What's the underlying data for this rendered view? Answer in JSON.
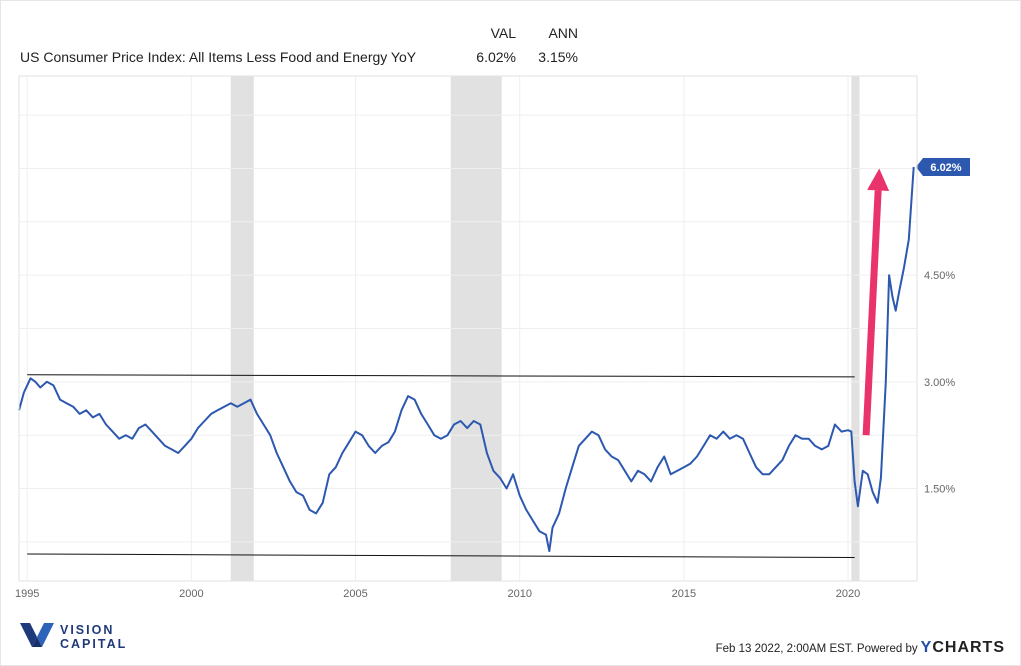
{
  "header": {
    "col_val": "VAL",
    "col_ann": "ANN",
    "series_label": "US Consumer Price Index: All Items Less Food and Energy YoY",
    "val": "6.02%",
    "ann": "3.15%"
  },
  "chart_data": {
    "type": "line",
    "title": "",
    "xlabel": "",
    "ylabel": "",
    "xlim": [
      1994.75,
      2022.1
    ],
    "ylim": [
      0.2,
      7.3
    ],
    "x_ticks": [
      "1995",
      "2000",
      "2005",
      "2010",
      "2015",
      "2020"
    ],
    "y_ticks": [
      "1.50%",
      "3.00%",
      "4.50%"
    ],
    "grid": true,
    "last_value_label": "6.02%",
    "recessions": [
      [
        2001.2,
        2001.9
      ],
      [
        2007.9,
        2009.45
      ],
      [
        2020.1,
        2020.35
      ]
    ],
    "annotations": {
      "upper_line": {
        "start": [
          1995.0,
          3.1
        ],
        "end": [
          2020.2,
          3.07
        ]
      },
      "lower_line": {
        "start": [
          1995.0,
          0.58
        ],
        "end": [
          2020.2,
          0.53
        ]
      },
      "arrow": {
        "start": [
          2020.55,
          2.25
        ],
        "end": [
          2020.95,
          6.0
        ],
        "color": "#e8336b"
      }
    },
    "series": [
      {
        "name": "US Consumer Price Index: All Items Less Food and Energy YoY",
        "color": "#2d58b0",
        "x": [
          1994.75,
          1994.9,
          1995.0,
          1995.1,
          1995.25,
          1995.4,
          1995.6,
          1995.8,
          1996.0,
          1996.2,
          1996.4,
          1996.6,
          1996.8,
          1997.0,
          1997.2,
          1997.4,
          1997.6,
          1997.8,
          1998.0,
          1998.2,
          1998.4,
          1998.6,
          1998.8,
          1999.0,
          1999.2,
          1999.4,
          1999.6,
          1999.8,
          2000.0,
          2000.2,
          2000.4,
          2000.6,
          2000.8,
          2001.0,
          2001.2,
          2001.4,
          2001.6,
          2001.8,
          2002.0,
          2002.2,
          2002.4,
          2002.6,
          2002.8,
          2003.0,
          2003.2,
          2003.4,
          2003.6,
          2003.8,
          2004.0,
          2004.2,
          2004.4,
          2004.6,
          2004.8,
          2005.0,
          2005.2,
          2005.4,
          2005.6,
          2005.8,
          2006.0,
          2006.2,
          2006.4,
          2006.6,
          2006.8,
          2007.0,
          2007.2,
          2007.4,
          2007.6,
          2007.8,
          2008.0,
          2008.2,
          2008.4,
          2008.6,
          2008.8,
          2009.0,
          2009.2,
          2009.4,
          2009.6,
          2009.8,
          2010.0,
          2010.2,
          2010.4,
          2010.6,
          2010.8,
          2010.9,
          2011.0,
          2011.2,
          2011.4,
          2011.6,
          2011.8,
          2012.0,
          2012.2,
          2012.4,
          2012.6,
          2012.8,
          2013.0,
          2013.2,
          2013.4,
          2013.6,
          2013.8,
          2014.0,
          2014.2,
          2014.4,
          2014.6,
          2014.8,
          2015.0,
          2015.2,
          2015.4,
          2015.6,
          2015.8,
          2016.0,
          2016.2,
          2016.4,
          2016.6,
          2016.8,
          2017.0,
          2017.2,
          2017.4,
          2017.6,
          2017.8,
          2018.0,
          2018.2,
          2018.4,
          2018.6,
          2018.8,
          2019.0,
          2019.2,
          2019.4,
          2019.6,
          2019.8,
          2020.0,
          2020.1,
          2020.2,
          2020.3,
          2020.45,
          2020.6,
          2020.75,
          2020.9,
          2021.0,
          2021.15,
          2021.25,
          2021.35,
          2021.45,
          2021.55,
          2021.7,
          2021.85,
          2022.0
        ],
        "values": [
          2.6,
          2.85,
          2.95,
          3.05,
          3.0,
          2.92,
          3.0,
          2.95,
          2.75,
          2.7,
          2.65,
          2.55,
          2.6,
          2.5,
          2.55,
          2.4,
          2.3,
          2.2,
          2.25,
          2.2,
          2.35,
          2.4,
          2.3,
          2.2,
          2.1,
          2.05,
          2.0,
          2.1,
          2.2,
          2.35,
          2.45,
          2.55,
          2.6,
          2.65,
          2.7,
          2.65,
          2.7,
          2.75,
          2.55,
          2.4,
          2.25,
          2.0,
          1.8,
          1.6,
          1.45,
          1.4,
          1.2,
          1.15,
          1.3,
          1.7,
          1.8,
          2.0,
          2.15,
          2.3,
          2.25,
          2.1,
          2.0,
          2.1,
          2.15,
          2.3,
          2.6,
          2.8,
          2.75,
          2.55,
          2.4,
          2.25,
          2.2,
          2.25,
          2.4,
          2.45,
          2.35,
          2.45,
          2.4,
          2.0,
          1.75,
          1.65,
          1.5,
          1.7,
          1.4,
          1.2,
          1.05,
          0.9,
          0.85,
          0.62,
          0.95,
          1.15,
          1.5,
          1.8,
          2.1,
          2.2,
          2.3,
          2.25,
          2.05,
          1.95,
          1.9,
          1.75,
          1.6,
          1.75,
          1.7,
          1.6,
          1.8,
          1.95,
          1.7,
          1.75,
          1.8,
          1.85,
          1.95,
          2.1,
          2.25,
          2.2,
          2.3,
          2.2,
          2.25,
          2.2,
          2.0,
          1.8,
          1.7,
          1.7,
          1.8,
          1.9,
          2.1,
          2.25,
          2.2,
          2.2,
          2.1,
          2.05,
          2.1,
          2.4,
          2.3,
          2.32,
          2.3,
          1.6,
          1.25,
          1.75,
          1.7,
          1.45,
          1.3,
          1.65,
          3.0,
          4.5,
          4.2,
          4.0,
          4.25,
          4.6,
          5.0,
          6.02
        ]
      }
    ]
  },
  "footer": {
    "logo_line1": "VISION",
    "logo_line2": "CAPITAL",
    "timestamp": "Feb 13 2022, 2:00AM EST. Powered by",
    "brand_y": "Y",
    "brand_rest": "CHARTS"
  }
}
